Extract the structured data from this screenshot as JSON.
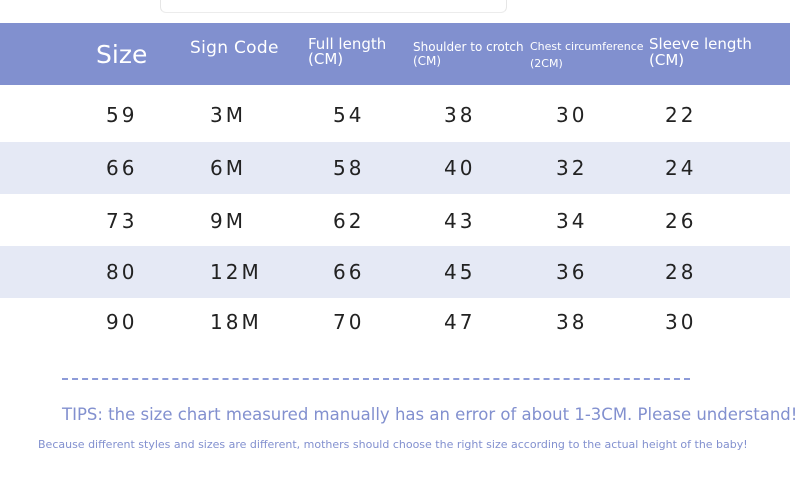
{
  "header": {
    "size": "Size",
    "sign_code": "Sign Code",
    "full_length": [
      "Full length",
      "(CM)"
    ],
    "shoulder": [
      "Shoulder to crotch",
      "(CM)"
    ],
    "chest": [
      "Chest circumference",
      "(2CM)"
    ],
    "sleeve": [
      "Sleeve length",
      "(CM)"
    ]
  },
  "rows": [
    [
      "59",
      "3M",
      "54",
      "38",
      "30",
      "22"
    ],
    [
      "66",
      "6M",
      "58",
      "40",
      "32",
      "24"
    ],
    [
      "73",
      "9M",
      "62",
      "43",
      "34",
      "26"
    ],
    [
      "80",
      "12M",
      "66",
      "45",
      "36",
      "28"
    ],
    [
      "90",
      "18M",
      "70",
      "47",
      "38",
      "30"
    ]
  ],
  "tips": "TIPS: the size chart measured manually has an error of about 1-3CM. Please understand!",
  "note": "Because different styles and sizes are different, mothers should choose the right size according to the actual height of the baby!",
  "colors": {
    "header_bg": "#8190cf",
    "row_shade": "#e5e9f5",
    "accent_text": "#8290cf"
  }
}
